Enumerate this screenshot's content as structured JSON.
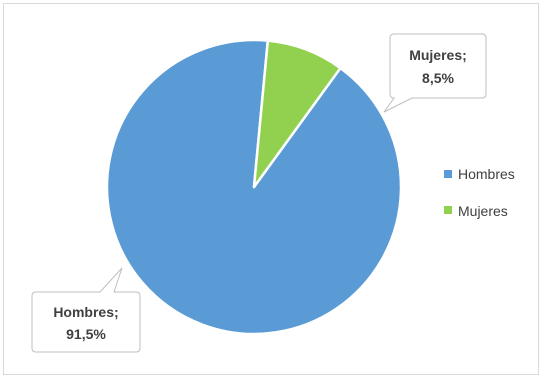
{
  "chart_data": {
    "type": "pie",
    "title": "",
    "categories": [
      "Hombres",
      "Mujeres"
    ],
    "values": [
      91.5,
      8.5
    ],
    "unit": "%",
    "colors": [
      "#5b9bd5",
      "#92d050"
    ],
    "data_labels": [
      {
        "category": "Hombres;",
        "value": "91,5%"
      },
      {
        "category": "Mujeres;",
        "value": "8,5%"
      }
    ],
    "legend": {
      "placement": "right",
      "entries": [
        "Hombres",
        "Mujeres"
      ]
    }
  }
}
